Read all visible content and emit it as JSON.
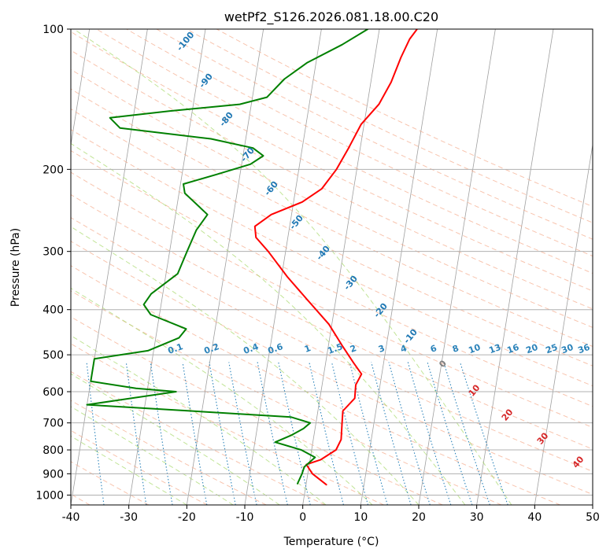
{
  "chart_data": {
    "type": "skew-t",
    "title": "wetPf2_S126.2026.081.18.00.C20",
    "xlabel": "Temperature (°C)",
    "ylabel": "Pressure (hPa)",
    "xlim": [
      -40,
      50
    ],
    "ylim_hPa": [
      1050,
      100
    ],
    "y_scale": "log",
    "x_ticks": [
      "-40",
      "-30",
      "-20",
      "-10",
      "0",
      "10",
      "20",
      "30",
      "40",
      "50"
    ],
    "y_ticks": [
      "100",
      "200",
      "300",
      "400",
      "500",
      "600",
      "700",
      "800",
      "900",
      "1000"
    ],
    "grid": true,
    "colors": {
      "temperature": "#ff0000",
      "dewpoint": "#008000",
      "isotherm": "#808080",
      "dry_adiabat": "#f4a582",
      "moist_adiabat": "#a6d96a",
      "mixing_ratio": "#2b83ba",
      "dewpoint_label": "#1f78b4",
      "temp_label": "#d62728"
    },
    "isotherm_skew_label_text": [
      "-100",
      "-90",
      "-80",
      "-70",
      "-60",
      "-50",
      "-40",
      "-30",
      "-20",
      "-10",
      "0",
      "10",
      "20",
      "30",
      "40"
    ],
    "mixing_ratio_labels": [
      "0.1",
      "0.2",
      "0.4",
      "0.6",
      "1",
      "1.5",
      "2",
      "3",
      "4",
      "6",
      "8",
      "10",
      "13",
      "16",
      "20",
      "25",
      "30",
      "36"
    ],
    "mixing_ratio_values_gkg": [
      0.1,
      0.2,
      0.4,
      0.6,
      1,
      1.5,
      2,
      3,
      4,
      6,
      8,
      10,
      13,
      16,
      20,
      25,
      30,
      36
    ],
    "series": [
      {
        "name": "",
        "role": "temperature",
        "points": [
          [
            950,
            3.5
          ],
          [
            900,
            0.8
          ],
          [
            860,
            -0.5
          ],
          [
            840,
            1.8
          ],
          [
            800,
            4.2
          ],
          [
            760,
            4.8
          ],
          [
            700,
            4.5
          ],
          [
            660,
            4.3
          ],
          [
            620,
            6.0
          ],
          [
            580,
            5.8
          ],
          [
            550,
            6.5
          ],
          [
            520,
            4.8
          ],
          [
            480,
            2.5
          ],
          [
            430,
            -0.5
          ],
          [
            380,
            -5.0
          ],
          [
            340,
            -9.0
          ],
          [
            300,
            -13.0
          ],
          [
            280,
            -15.5
          ],
          [
            265,
            -16.0
          ],
          [
            250,
            -13.5
          ],
          [
            235,
            -8.5
          ],
          [
            220,
            -5.5
          ],
          [
            200,
            -3.5
          ],
          [
            180,
            -2.0
          ],
          [
            160,
            -0.5
          ],
          [
            145,
            2.0
          ],
          [
            130,
            3.5
          ],
          [
            115,
            4.5
          ],
          [
            105,
            5.5
          ],
          [
            100,
            6.5
          ]
        ]
      },
      {
        "name": "",
        "role": "dewpoint",
        "points": [
          [
            945,
            -1.5
          ],
          [
            900,
            -1.0
          ],
          [
            870,
            -0.8
          ],
          [
            830,
            0.8
          ],
          [
            800,
            -1.8
          ],
          [
            770,
            -6.5
          ],
          [
            745,
            -4.0
          ],
          [
            720,
            -2.0
          ],
          [
            700,
            -1.0
          ],
          [
            680,
            -4.5
          ],
          [
            640,
            -40
          ],
          [
            600,
            -25
          ],
          [
            590,
            -32
          ],
          [
            570,
            -40
          ],
          [
            510,
            -40
          ],
          [
            490,
            -31
          ],
          [
            460,
            -26
          ],
          [
            440,
            -25
          ],
          [
            410,
            -31.5
          ],
          [
            390,
            -33
          ],
          [
            370,
            -32
          ],
          [
            335,
            -28
          ],
          [
            300,
            -27
          ],
          [
            270,
            -26
          ],
          [
            250,
            -24.5
          ],
          [
            225,
            -29
          ],
          [
            215,
            -29.5
          ],
          [
            205,
            -24
          ],
          [
            195,
            -18.5
          ],
          [
            187,
            -16.5
          ],
          [
            180,
            -18.5
          ],
          [
            172,
            -26
          ],
          [
            163,
            -42
          ],
          [
            155,
            -44
          ],
          [
            150,
            -34
          ],
          [
            145,
            -22
          ],
          [
            140,
            -17.5
          ],
          [
            128,
            -15
          ],
          [
            118,
            -11.5
          ],
          [
            108,
            -6
          ],
          [
            100,
            -2
          ]
        ]
      }
    ]
  }
}
